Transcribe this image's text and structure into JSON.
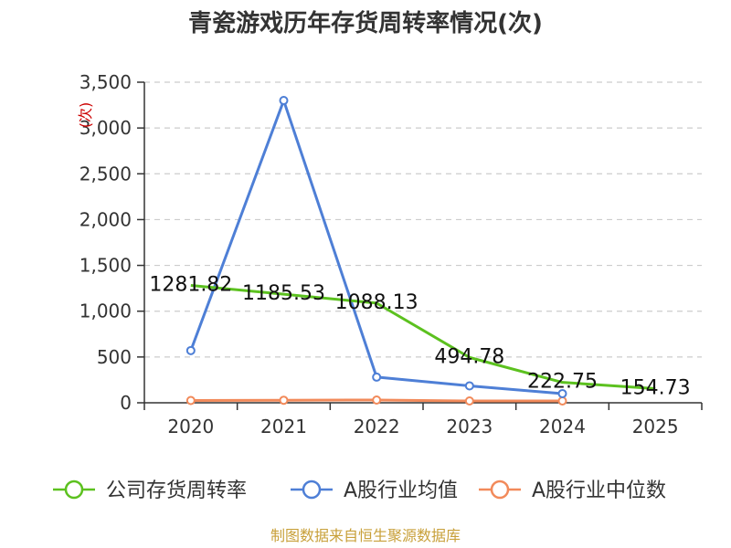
{
  "chart_data": {
    "type": "line",
    "title": "青瓷游戏历年存货周转率情况(次)",
    "ylabel": "(次)",
    "categories": [
      "2020",
      "2021",
      "2022",
      "2023",
      "2024",
      "2025"
    ],
    "ylim": [
      0,
      3500
    ],
    "yticks": [
      0,
      500,
      1000,
      1500,
      2000,
      2500,
      3000,
      3500
    ],
    "ytick_labels": [
      "0",
      "500",
      "1,000",
      "1,500",
      "2,000",
      "2,500",
      "3,000",
      "3,500"
    ],
    "grid": true,
    "legend_position": "bottom",
    "series": [
      {
        "name": "公司存货周转率",
        "color": "#5cc11f",
        "show_labels": true,
        "values": [
          1281.82,
          1185.53,
          1088.13,
          494.78,
          222.75,
          154.73
        ],
        "labels": [
          "1281.82",
          "1185.53",
          "1088.13",
          "494.78",
          "222.75",
          "154.73"
        ]
      },
      {
        "name": "A股行业均值",
        "color": "#4e7fd6",
        "show_labels": false,
        "values": [
          570,
          3300,
          280,
          185,
          100,
          null
        ]
      },
      {
        "name": "A股行业中位数",
        "color": "#f28a5a",
        "show_labels": false,
        "values": [
          25,
          28,
          30,
          20,
          20,
          null
        ]
      }
    ]
  },
  "source": "制图数据来自恒生聚源数据库"
}
